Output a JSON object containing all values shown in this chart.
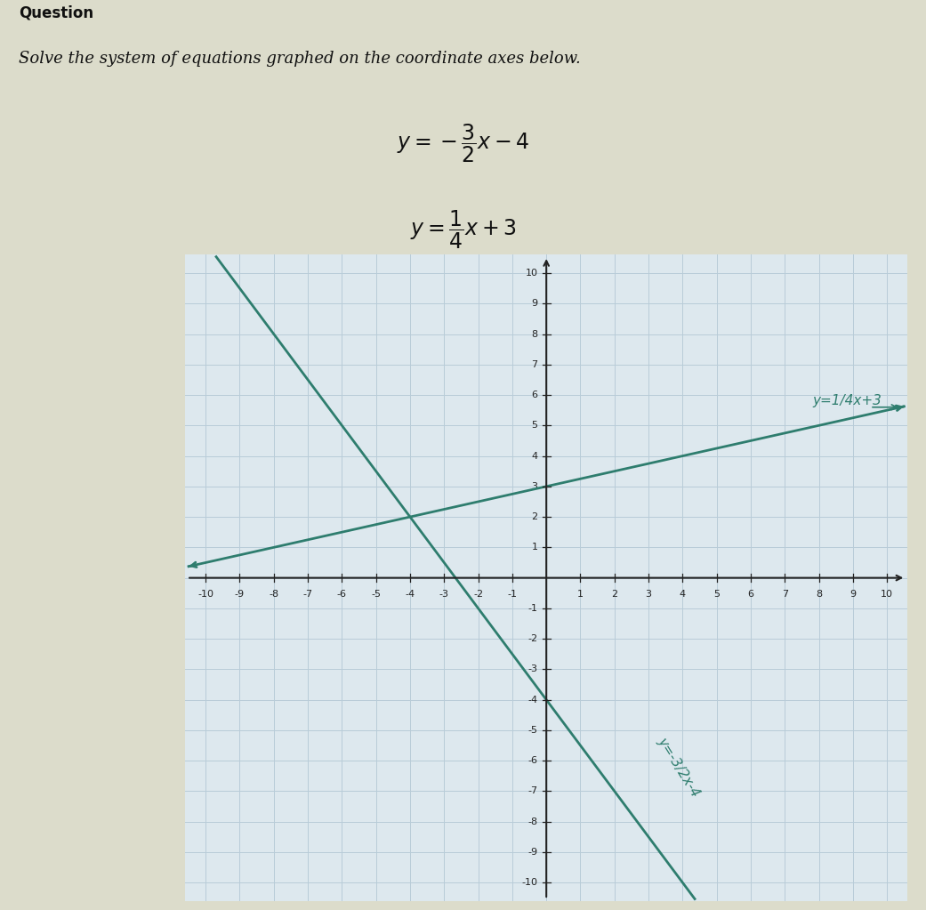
{
  "title": "Question",
  "subtitle": "Solve the system of equations graphed on the coordinate axes below.",
  "eq1_label_graph": "y=-3/2x-4",
  "eq2_label_graph": "y=1/4x+3",
  "line1_slope": -1.5,
  "line1_intercept": -4,
  "line2_slope": 0.25,
  "line2_intercept": 3,
  "xmin": -10,
  "xmax": 10,
  "ymin": -10,
  "ymax": 10,
  "line_color": "#2e7d6e",
  "grid_color": "#b8ccd8",
  "axis_color": "#222222",
  "bg_color": "#dcdccb",
  "graph_bg_color": "#dde8ee",
  "text_color": "#111111",
  "title_fontsize": 12,
  "subtitle_fontsize": 13,
  "eq_fontsize": 17,
  "tick_fontsize": 8,
  "graph_label_fontsize": 11
}
